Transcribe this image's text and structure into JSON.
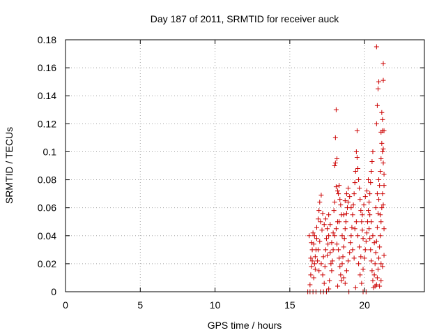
{
  "chart_data": {
    "type": "scatter",
    "title": "Day 187 of 2011, SRMTID for receiver auck",
    "xlabel": "GPS time / hours",
    "ylabel": "SRMTID / TECUs",
    "xlim": [
      0,
      24
    ],
    "ylim": [
      0,
      0.18
    ],
    "grid": true,
    "marker": "+",
    "marker_color": "#cc0000",
    "x_ticks": [
      0,
      5,
      10,
      15,
      20
    ],
    "x_tick_labels": [
      "0",
      "5",
      "10",
      "15",
      "20"
    ],
    "y_ticks": [
      0,
      0.02,
      0.04,
      0.06,
      0.08,
      0.1,
      0.12,
      0.14,
      0.16,
      0.18
    ],
    "y_tick_labels": [
      "0",
      "0.02",
      "0.04",
      "0.06",
      "0.08",
      "0.1",
      "0.12",
      "0.14",
      "0.16",
      "0.18"
    ],
    "points": [
      [
        16.2,
        0.0
      ],
      [
        16.35,
        0.0
      ],
      [
        16.55,
        0.0
      ],
      [
        16.75,
        0.0
      ],
      [
        17.05,
        0.0
      ],
      [
        17.25,
        0.0
      ],
      [
        17.45,
        0.0
      ],
      [
        19.9,
        0.0
      ],
      [
        20.1,
        0.0
      ],
      [
        16.35,
        0.005
      ],
      [
        16.4,
        0.012
      ],
      [
        16.45,
        0.018
      ],
      [
        16.4,
        0.024
      ],
      [
        16.5,
        0.03
      ],
      [
        16.45,
        0.035
      ],
      [
        16.3,
        0.04
      ],
      [
        16.55,
        0.042
      ],
      [
        16.6,
        0.01
      ],
      [
        16.65,
        0.02
      ],
      [
        16.7,
        0.025
      ],
      [
        16.75,
        0.03
      ],
      [
        16.65,
        0.04
      ],
      [
        16.8,
        0.046
      ],
      [
        16.9,
        0.052
      ],
      [
        16.95,
        0.058
      ],
      [
        17.0,
        0.064
      ],
      [
        17.1,
        0.069
      ],
      [
        17.05,
        0.05
      ],
      [
        17.15,
        0.044
      ],
      [
        17.0,
        0.036
      ],
      [
        16.9,
        0.03
      ],
      [
        16.85,
        0.022
      ],
      [
        16.95,
        0.015
      ],
      [
        17.1,
        0.02
      ],
      [
        17.2,
        0.012
      ],
      [
        17.3,
        0.006
      ],
      [
        17.25,
        0.025
      ],
      [
        17.35,
        0.018
      ],
      [
        17.4,
        0.03
      ],
      [
        17.45,
        0.038
      ],
      [
        17.5,
        0.026
      ],
      [
        17.55,
        0.034
      ],
      [
        17.6,
        0.04
      ],
      [
        17.7,
        0.028
      ],
      [
        17.75,
        0.02
      ],
      [
        17.8,
        0.015
      ],
      [
        17.65,
        0.008
      ],
      [
        17.85,
        0.022
      ],
      [
        17.9,
        0.03
      ],
      [
        17.95,
        0.058
      ],
      [
        18.0,
        0.064
      ],
      [
        18.0,
        0.09
      ],
      [
        18.05,
        0.092
      ],
      [
        18.05,
        0.11
      ],
      [
        18.1,
        0.13
      ],
      [
        18.15,
        0.095
      ],
      [
        18.1,
        0.075
      ],
      [
        18.2,
        0.072
      ],
      [
        18.25,
        0.07
      ],
      [
        18.3,
        0.076
      ],
      [
        18.35,
        0.066
      ],
      [
        18.4,
        0.062
      ],
      [
        18.45,
        0.055
      ],
      [
        18.2,
        0.05
      ],
      [
        18.1,
        0.045
      ],
      [
        18.0,
        0.04
      ],
      [
        18.15,
        0.034
      ],
      [
        18.25,
        0.03
      ],
      [
        18.3,
        0.024
      ],
      [
        18.35,
        0.018
      ],
      [
        18.4,
        0.012
      ],
      [
        18.45,
        0.008
      ],
      [
        18.5,
        0.02
      ],
      [
        18.55,
        0.025
      ],
      [
        18.6,
        0.032
      ],
      [
        18.65,
        0.038
      ],
      [
        18.7,
        0.045
      ],
      [
        18.75,
        0.05
      ],
      [
        18.8,
        0.056
      ],
      [
        18.85,
        0.06
      ],
      [
        18.9,
        0.064
      ],
      [
        18.6,
        0.01
      ],
      [
        18.7,
        0.006
      ],
      [
        18.8,
        0.015
      ],
      [
        18.9,
        0.022
      ],
      [
        19.0,
        0.028
      ],
      [
        19.05,
        0.035
      ],
      [
        19.1,
        0.04
      ],
      [
        19.15,
        0.046
      ],
      [
        19.2,
        0.055
      ],
      [
        19.25,
        0.062
      ],
      [
        19.3,
        0.07
      ],
      [
        19.35,
        0.078
      ],
      [
        19.4,
        0.086
      ],
      [
        19.45,
        0.1
      ],
      [
        19.5,
        0.115
      ],
      [
        19.5,
        0.096
      ],
      [
        19.55,
        0.088
      ],
      [
        19.6,
        0.08
      ],
      [
        19.65,
        0.074
      ],
      [
        19.7,
        0.066
      ],
      [
        19.75,
        0.058
      ],
      [
        19.8,
        0.05
      ],
      [
        19.85,
        0.044
      ],
      [
        19.9,
        0.038
      ],
      [
        19.6,
        0.02
      ],
      [
        19.7,
        0.012
      ],
      [
        19.8,
        0.006
      ],
      [
        19.9,
        0.016
      ],
      [
        20.0,
        0.024
      ],
      [
        20.05,
        0.03
      ],
      [
        20.1,
        0.036
      ],
      [
        20.15,
        0.042
      ],
      [
        20.2,
        0.05
      ],
      [
        20.25,
        0.058
      ],
      [
        20.3,
        0.064
      ],
      [
        20.35,
        0.07
      ],
      [
        20.4,
        0.078
      ],
      [
        20.45,
        0.086
      ],
      [
        20.5,
        0.093
      ],
      [
        20.55,
        0.1
      ],
      [
        20.3,
        0.045
      ],
      [
        20.35,
        0.038
      ],
      [
        20.4,
        0.03
      ],
      [
        20.45,
        0.022
      ],
      [
        20.5,
        0.015
      ],
      [
        20.55,
        0.008
      ],
      [
        20.6,
        0.003
      ],
      [
        20.65,
        0.012
      ],
      [
        20.7,
        0.02
      ],
      [
        20.75,
        0.028
      ],
      [
        20.8,
        0.036
      ],
      [
        20.85,
        0.046
      ],
      [
        20.9,
        0.056
      ],
      [
        20.95,
        0.066
      ],
      [
        21.0,
        0.076
      ],
      [
        21.05,
        0.086
      ],
      [
        21.1,
        0.095
      ],
      [
        21.15,
        0.106
      ],
      [
        21.2,
        0.115
      ],
      [
        21.2,
        0.1
      ],
      [
        21.25,
        0.092
      ],
      [
        21.3,
        0.084
      ],
      [
        21.2,
        0.07
      ],
      [
        21.15,
        0.06
      ],
      [
        21.1,
        0.05
      ],
      [
        21.05,
        0.04
      ],
      [
        21.0,
        0.032
      ],
      [
        20.95,
        0.024
      ],
      [
        20.9,
        0.016
      ],
      [
        20.85,
        0.01
      ],
      [
        20.8,
        0.005
      ],
      [
        21.1,
        0.008
      ],
      [
        20.8,
        0.12
      ],
      [
        20.85,
        0.133
      ],
      [
        20.9,
        0.145
      ],
      [
        20.95,
        0.15
      ],
      [
        20.8,
        0.175
      ],
      [
        21.25,
        0.163
      ],
      [
        21.25,
        0.151
      ],
      [
        21.15,
        0.128
      ],
      [
        21.2,
        0.123
      ],
      [
        21.1,
        0.114
      ],
      [
        21.3,
        0.115
      ],
      [
        21.25,
        0.102
      ],
      [
        21.3,
        0.076
      ],
      [
        21.25,
        0.062
      ],
      [
        21.3,
        0.045
      ],
      [
        21.3,
        0.026
      ],
      [
        21.2,
        0.018
      ],
      [
        21.1,
        0.02
      ],
      [
        21.0,
        0.004
      ],
      [
        20.7,
        0.004
      ],
      [
        18.2,
        0.004
      ],
      [
        17.6,
        0.002
      ],
      [
        19.4,
        0.003
      ],
      [
        18.95,
        0.0
      ],
      [
        16.5,
        0.022
      ],
      [
        16.6,
        0.034
      ],
      [
        16.7,
        0.016
      ],
      [
        16.8,
        0.038
      ],
      [
        17.2,
        0.056
      ],
      [
        17.3,
        0.048
      ],
      [
        17.4,
        0.052
      ],
      [
        17.5,
        0.045
      ],
      [
        17.6,
        0.055
      ],
      [
        17.7,
        0.048
      ],
      [
        17.8,
        0.035
      ],
      [
        17.9,
        0.042
      ],
      [
        18.3,
        0.05
      ],
      [
        18.5,
        0.04
      ],
      [
        18.6,
        0.055
      ],
      [
        18.7,
        0.065
      ],
      [
        18.8,
        0.07
      ],
      [
        18.9,
        0.074
      ],
      [
        19.0,
        0.068
      ],
      [
        19.1,
        0.06
      ],
      [
        19.2,
        0.03
      ],
      [
        19.3,
        0.024
      ],
      [
        19.35,
        0.045
      ],
      [
        19.45,
        0.05
      ],
      [
        19.55,
        0.04
      ],
      [
        19.65,
        0.032
      ],
      [
        19.75,
        0.025
      ],
      [
        19.85,
        0.055
      ],
      [
        19.95,
        0.062
      ],
      [
        20.05,
        0.068
      ],
      [
        20.15,
        0.072
      ],
      [
        20.25,
        0.08
      ],
      [
        20.35,
        0.055
      ],
      [
        20.45,
        0.05
      ],
      [
        20.55,
        0.04
      ],
      [
        20.65,
        0.035
      ],
      [
        20.75,
        0.06
      ],
      [
        20.85,
        0.07
      ],
      [
        20.95,
        0.08
      ],
      [
        21.05,
        0.055
      ]
    ]
  }
}
